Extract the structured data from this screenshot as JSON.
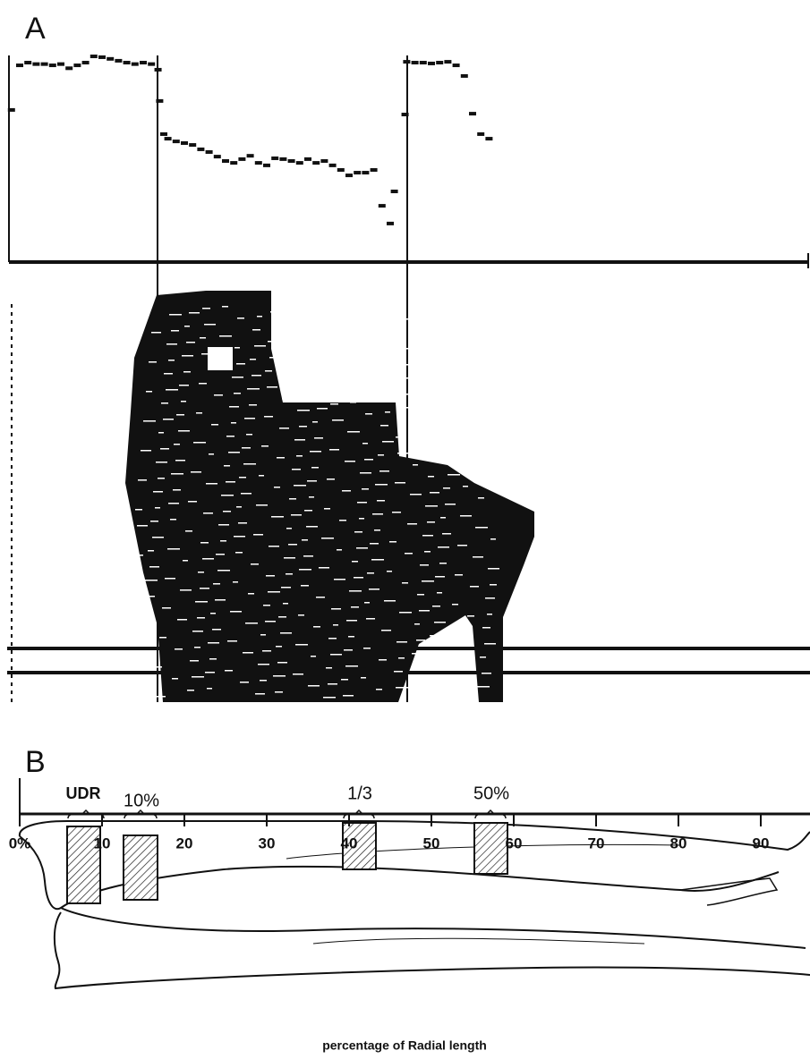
{
  "chart_data": {
    "type": "scatter",
    "panel_labels": [
      "A",
      "B"
    ],
    "x": [
      -1,
      0,
      1,
      2,
      3,
      4,
      5,
      6,
      7,
      8,
      9,
      10,
      11,
      12,
      13,
      14,
      15,
      16,
      16.8,
      17,
      17.5,
      18,
      19,
      20,
      21,
      22,
      23,
      24,
      25,
      26,
      27,
      28,
      29,
      30,
      31,
      32,
      33,
      34,
      35,
      36,
      37,
      38,
      39,
      40,
      41,
      42,
      43,
      44,
      45,
      45.5,
      46.8,
      47,
      48,
      49,
      50,
      51,
      52,
      53,
      54,
      55,
      56,
      57,
      58.5
    ],
    "values": [
      0.73,
      0.944,
      0.957,
      0.95,
      0.95,
      0.944,
      0.95,
      0.93,
      0.944,
      0.957,
      0.987,
      0.983,
      0.975,
      0.966,
      0.957,
      0.95,
      0.957,
      0.95,
      0.923,
      0.773,
      0.614,
      0.592,
      0.579,
      0.571,
      0.562,
      0.541,
      0.528,
      0.506,
      0.485,
      0.476,
      0.494,
      0.51,
      0.476,
      0.464,
      0.498,
      0.494,
      0.485,
      0.476,
      0.494,
      0.476,
      0.485,
      0.464,
      0.442,
      0.416,
      0.429,
      0.429,
      0.442,
      0.27,
      0.185,
      0.339,
      0.708,
      0.961,
      0.957,
      0.957,
      0.953,
      0.957,
      0.961,
      0.944,
      0.893,
      0.712,
      0.614,
      0.592,
      0.0
    ],
    "color": "#111111",
    "xlim": [
      -1.5,
      96
    ],
    "ylim": [
      0,
      1
    ],
    "annotations": [
      "UDR",
      "10%",
      "1/3",
      "50%"
    ],
    "xticks": [
      {
        "value": 0,
        "label": "0%"
      },
      10,
      20,
      30,
      40,
      50,
      60,
      70,
      80,
      90
    ],
    "xlabel": "percentage of Radial length"
  }
}
